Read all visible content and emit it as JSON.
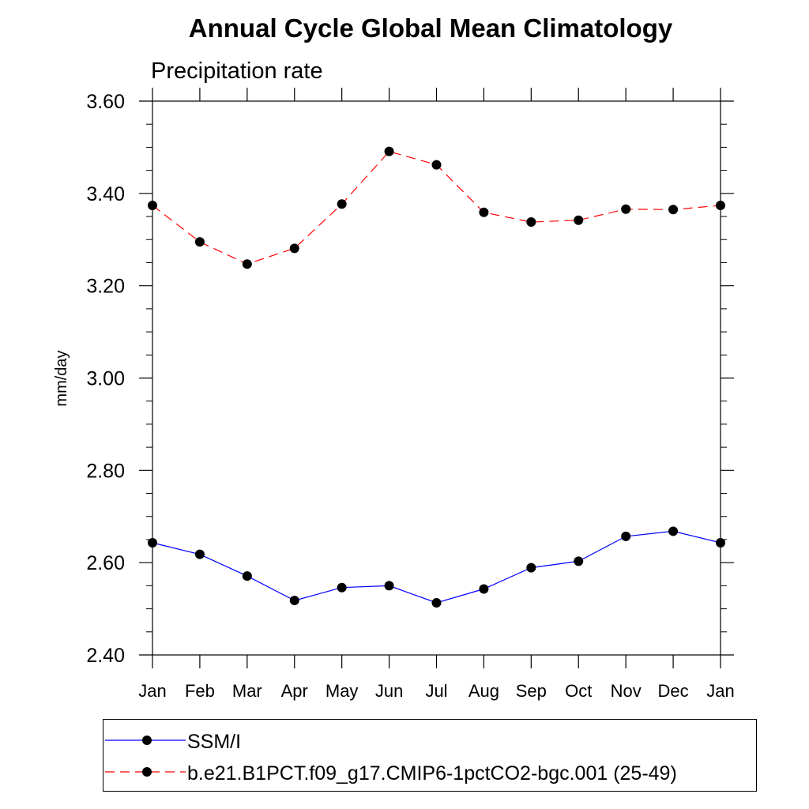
{
  "chart_data": {
    "type": "line",
    "title": "Annual Cycle Global Mean Climatology",
    "subtitle": "Precipitation rate",
    "ylabel": "mm/day",
    "xlabel": "",
    "categories": [
      "Jan",
      "Feb",
      "Mar",
      "Apr",
      "May",
      "Jun",
      "Jul",
      "Aug",
      "Sep",
      "Oct",
      "Nov",
      "Dec",
      "Jan"
    ],
    "ylim": [
      2.4,
      3.6
    ],
    "yticks": [
      "2.40",
      "2.60",
      "2.80",
      "3.00",
      "3.20",
      "3.40",
      "3.60"
    ],
    "grid": false,
    "legend_position": "bottom",
    "series": [
      {
        "name": "SSM/I",
        "color": "#0000ff",
        "line_style": "solid",
        "marker": "filled-circle",
        "values": [
          2.643,
          2.618,
          2.571,
          2.518,
          2.546,
          2.55,
          2.513,
          2.543,
          2.589,
          2.603,
          2.657,
          2.668,
          2.643
        ]
      },
      {
        "name": "b.e21.B1PCT.f09_g17.CMIP6-1pctCO2-bgc.001 (25-49)",
        "color": "#ff0000",
        "line_style": "dashed",
        "marker": "filled-circle",
        "values": [
          3.374,
          3.295,
          3.247,
          3.281,
          3.377,
          3.491,
          3.462,
          3.359,
          3.338,
          3.342,
          3.366,
          3.365,
          3.374
        ]
      }
    ]
  }
}
